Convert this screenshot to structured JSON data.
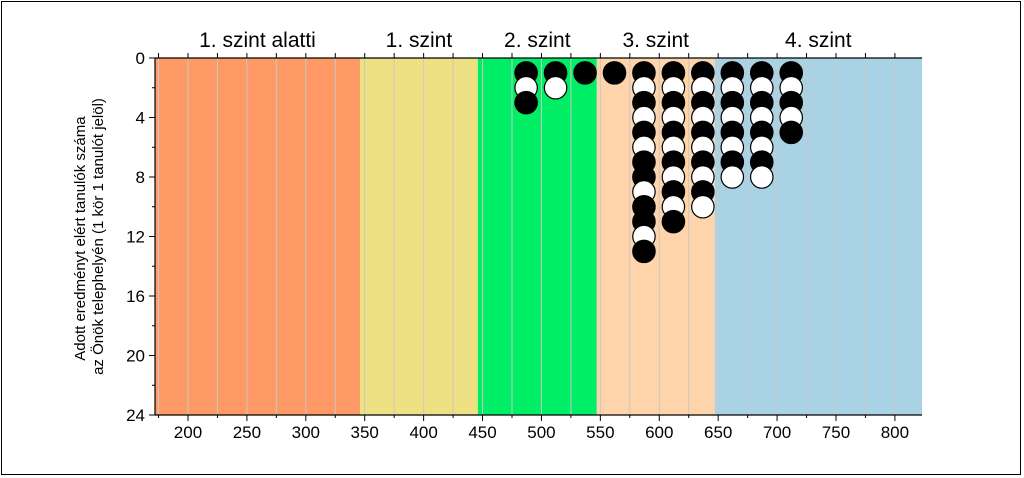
{
  "chart_data": {
    "type": "scatter",
    "title": "",
    "ylabel_line1": "Adott eredményt elért tanulók száma",
    "ylabel_line2": "az Önök telephelyén (1 kör 1 tanulót jelöl)",
    "xlabel": "",
    "xlim": [
      172,
      823
    ],
    "ylim": [
      0,
      24
    ],
    "y_inverted": true,
    "x_ticks": [
      "200",
      "250",
      "300",
      "350",
      "400",
      "450",
      "500",
      "550",
      "600",
      "650",
      "700",
      "750",
      "800"
    ],
    "y_ticks": [
      "0",
      "4",
      "8",
      "12",
      "16",
      "20",
      "24"
    ],
    "grid": true,
    "levels": [
      {
        "label": "1. szint alatti",
        "from": 172,
        "to": 346,
        "color": "#FF9966"
      },
      {
        "label": "1. szint",
        "from": 346,
        "to": 446,
        "color": "#EEE184"
      },
      {
        "label": "2. szint",
        "from": 446,
        "to": 547,
        "color": "#00EE66"
      },
      {
        "label": "3. szint",
        "from": 547,
        "to": 647,
        "color": "#FFD4AA"
      },
      {
        "label": "4. szint",
        "from": 647,
        "to": 823,
        "color": "#A9D3E5"
      }
    ],
    "student_columns": [
      {
        "x": 487,
        "pattern": [
          "black",
          "white",
          "black"
        ]
      },
      {
        "x": 512,
        "pattern": [
          "black",
          "white"
        ]
      },
      {
        "x": 537,
        "pattern": [
          "black"
        ]
      },
      {
        "x": 562,
        "pattern": [
          "black"
        ]
      },
      {
        "x": 587,
        "pattern": [
          "black",
          "white",
          "black",
          "white",
          "black",
          "white",
          "black",
          "black",
          "white",
          "black",
          "black",
          "white",
          "black"
        ]
      },
      {
        "x": 612,
        "pattern": [
          "black",
          "white",
          "black",
          "white",
          "black",
          "white",
          "black",
          "white",
          "black",
          "white",
          "black"
        ]
      },
      {
        "x": 637,
        "pattern": [
          "black",
          "white",
          "black",
          "white",
          "black",
          "white",
          "black",
          "white",
          "black",
          "white"
        ]
      },
      {
        "x": 662,
        "pattern": [
          "black",
          "white",
          "black",
          "white",
          "black",
          "white",
          "black",
          "white"
        ]
      },
      {
        "x": 687,
        "pattern": [
          "black",
          "white",
          "black",
          "white",
          "black",
          "white",
          "black",
          "white"
        ]
      },
      {
        "x": 712,
        "pattern": [
          "black",
          "white",
          "black",
          "white",
          "black"
        ]
      }
    ],
    "colors": {
      "dot_black": "#000000",
      "dot_white": "#ffffff",
      "grid": "#c8c8c8",
      "axis": "#000000"
    }
  }
}
